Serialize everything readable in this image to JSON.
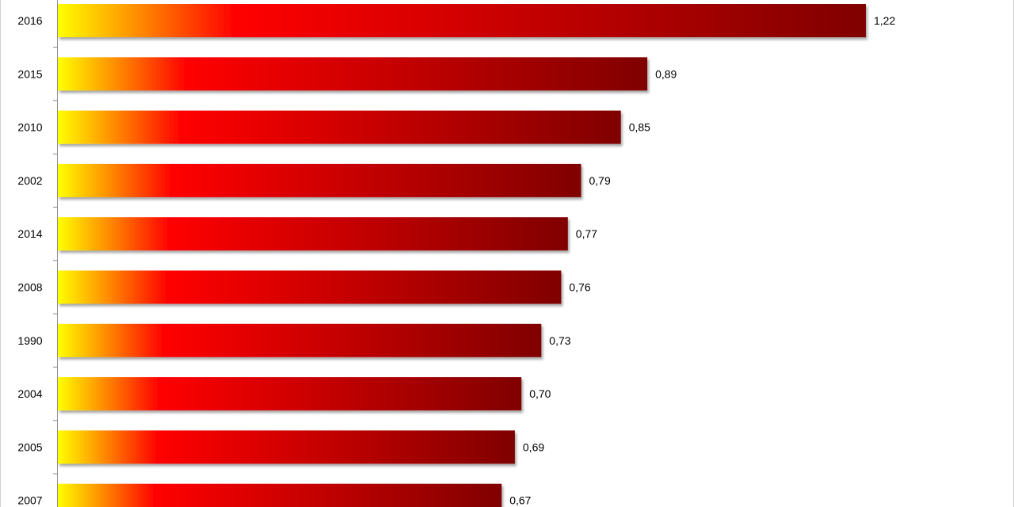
{
  "chart_data": {
    "type": "bar",
    "orientation": "horizontal",
    "categories": [
      "2016",
      "2015",
      "2010",
      "2002",
      "2014",
      "2008",
      "1990",
      "2004",
      "2005",
      "2007"
    ],
    "values": [
      1.22,
      0.89,
      0.85,
      0.79,
      0.77,
      0.76,
      0.73,
      0.7,
      0.69,
      0.67
    ],
    "value_labels": [
      "1,22",
      "0,89",
      "0,85",
      "0,79",
      "0,77",
      "0,76",
      "0,73",
      "0,70",
      "0,69",
      "0,67"
    ],
    "title": "",
    "xlabel": "",
    "ylabel": "",
    "xlim": [
      0,
      1.4
    ],
    "grid": false,
    "legend": "none",
    "bar_gradient": [
      "#ffff00",
      "#ff0000",
      "#800000"
    ]
  }
}
